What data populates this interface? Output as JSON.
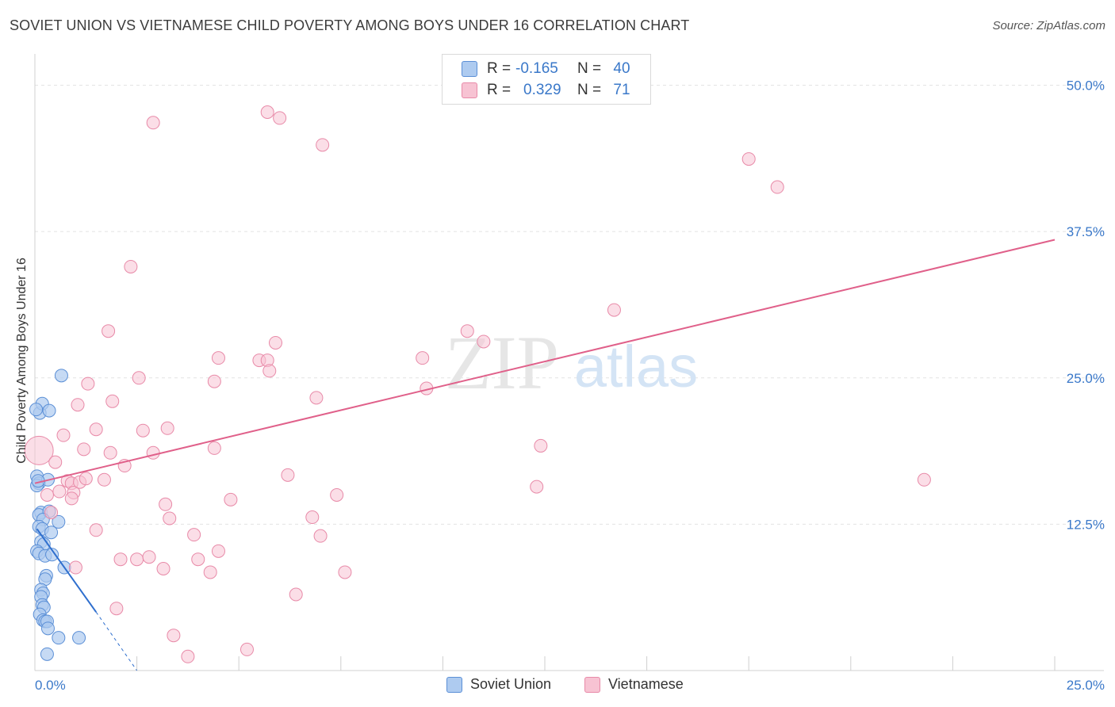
{
  "header": {
    "title": "SOVIET UNION VS VIETNAMESE CHILD POVERTY AMONG BOYS UNDER 16 CORRELATION CHART",
    "source": "Source: ZipAtlas.com"
  },
  "watermark": {
    "zip": "ZIP",
    "atlas": "atlas"
  },
  "legend": {
    "rows": [
      {
        "r_label": "R =",
        "r_value": "-0.165",
        "n_label": "N =",
        "n_value": "40"
      },
      {
        "r_label": "R =",
        "r_value": "0.329",
        "n_label": "N =",
        "n_value": "71"
      }
    ],
    "bottom": [
      "Soviet Union",
      "Vietnamese"
    ]
  },
  "colors": {
    "soviet_fill": "#aecbf0",
    "soviet_stroke": "#5b8fd6",
    "soviet_line": "#2f6fce",
    "viet_fill": "#f7c3d3",
    "viet_stroke": "#e88aa8",
    "viet_line": "#e0608a",
    "grid": "#e3e3e3",
    "tick_label": "#3a78c9"
  },
  "chart_data": {
    "type": "scatter",
    "title": "SOVIET UNION VS VIETNAMESE CHILD POVERTY AMONG BOYS UNDER 16 CORRELATION CHART",
    "xlabel": "",
    "ylabel": "Child Poverty Among Boys Under 16",
    "xlim": [
      0,
      25
    ],
    "ylim": [
      0,
      52
    ],
    "x_tick_labels": [
      "0.0%",
      "25.0%"
    ],
    "y_ticks": [
      12.5,
      25.0,
      37.5,
      50.0
    ],
    "y_tick_labels": [
      "12.5%",
      "25.0%",
      "37.5%",
      "50.0%"
    ],
    "grid": true,
    "series": [
      {
        "name": "Soviet Union",
        "r": -0.165,
        "n": 40,
        "points": [
          [
            0.12,
            22.0
          ],
          [
            0.18,
            22.8
          ],
          [
            0.35,
            22.2
          ],
          [
            0.65,
            25.2
          ],
          [
            0.05,
            16.6
          ],
          [
            0.1,
            16.0
          ],
          [
            0.32,
            16.3
          ],
          [
            0.05,
            15.8
          ],
          [
            0.15,
            13.5
          ],
          [
            0.1,
            13.3
          ],
          [
            0.35,
            13.6
          ],
          [
            0.2,
            12.9
          ],
          [
            0.58,
            12.7
          ],
          [
            0.1,
            12.3
          ],
          [
            0.18,
            12.1
          ],
          [
            0.4,
            11.8
          ],
          [
            0.15,
            11.0
          ],
          [
            0.22,
            10.8
          ],
          [
            0.05,
            10.2
          ],
          [
            0.1,
            10.0
          ],
          [
            0.25,
            9.8
          ],
          [
            0.42,
            9.9
          ],
          [
            0.72,
            8.8
          ],
          [
            0.28,
            8.1
          ],
          [
            0.25,
            7.8
          ],
          [
            0.15,
            6.9
          ],
          [
            0.2,
            6.6
          ],
          [
            0.15,
            6.3
          ],
          [
            0.18,
            5.6
          ],
          [
            0.22,
            5.4
          ],
          [
            0.12,
            4.8
          ],
          [
            0.2,
            4.3
          ],
          [
            0.25,
            4.2
          ],
          [
            0.3,
            4.2
          ],
          [
            0.32,
            3.6
          ],
          [
            0.58,
            2.8
          ],
          [
            1.08,
            2.8
          ],
          [
            0.3,
            1.4
          ],
          [
            0.03,
            22.3
          ],
          [
            0.08,
            16.2
          ]
        ],
        "trend": {
          "x": [
            0.05,
            1.5
          ],
          "y": [
            12.1,
            5.0
          ],
          "dashed_to": [
            2.5,
            0.0
          ]
        }
      },
      {
        "name": "Vietnamese",
        "r": 0.329,
        "n": 71,
        "points": [
          [
            0.1,
            18.8
          ],
          [
            0.3,
            15.0
          ],
          [
            0.4,
            13.5
          ],
          [
            0.5,
            17.8
          ],
          [
            0.7,
            20.1
          ],
          [
            0.8,
            16.2
          ],
          [
            0.9,
            16.0
          ],
          [
            0.95,
            15.2
          ],
          [
            1.1,
            16.1
          ],
          [
            1.05,
            22.7
          ],
          [
            1.2,
            18.9
          ],
          [
            1.3,
            24.5
          ],
          [
            1.5,
            20.6
          ],
          [
            1.7,
            16.3
          ],
          [
            1.8,
            29.0
          ],
          [
            1.85,
            18.6
          ],
          [
            1.9,
            23.0
          ],
          [
            2.2,
            17.5
          ],
          [
            2.35,
            34.5
          ],
          [
            2.55,
            25.0
          ],
          [
            2.65,
            20.5
          ],
          [
            2.9,
            18.6
          ],
          [
            2.9,
            46.8
          ],
          [
            3.25,
            20.7
          ],
          [
            3.2,
            14.2
          ],
          [
            3.3,
            13.0
          ],
          [
            3.9,
            11.6
          ],
          [
            4.0,
            9.5
          ],
          [
            4.3,
            8.4
          ],
          [
            4.4,
            19.0
          ],
          [
            4.4,
            24.7
          ],
          [
            4.5,
            10.2
          ],
          [
            4.5,
            26.7
          ],
          [
            4.8,
            14.6
          ],
          [
            5.5,
            26.5
          ],
          [
            5.7,
            26.5
          ],
          [
            5.7,
            47.7
          ],
          [
            5.75,
            25.6
          ],
          [
            5.9,
            28.0
          ],
          [
            6.0,
            47.2
          ],
          [
            6.2,
            16.7
          ],
          [
            6.4,
            6.5
          ],
          [
            6.8,
            13.1
          ],
          [
            6.9,
            23.3
          ],
          [
            7.0,
            11.5
          ],
          [
            7.05,
            44.9
          ],
          [
            7.4,
            15.0
          ],
          [
            7.6,
            8.4
          ],
          [
            9.5,
            26.7
          ],
          [
            9.6,
            24.1
          ],
          [
            10.6,
            29.0
          ],
          [
            11.0,
            28.1
          ],
          [
            12.3,
            15.7
          ],
          [
            12.4,
            19.2
          ],
          [
            14.2,
            30.8
          ],
          [
            17.5,
            43.7
          ],
          [
            18.2,
            41.3
          ],
          [
            21.8,
            16.3
          ],
          [
            1.0,
            8.8
          ],
          [
            1.5,
            12.0
          ],
          [
            2.0,
            5.3
          ],
          [
            2.5,
            9.5
          ],
          [
            2.8,
            9.7
          ],
          [
            3.15,
            8.7
          ],
          [
            3.4,
            3.0
          ],
          [
            3.75,
            1.2
          ],
          [
            5.2,
            1.8
          ],
          [
            2.1,
            9.5
          ],
          [
            0.6,
            15.3
          ],
          [
            1.25,
            16.4
          ],
          [
            0.9,
            14.7
          ]
        ],
        "trend": {
          "x": [
            0.0,
            25.0
          ],
          "y": [
            16.0,
            36.8
          ]
        }
      }
    ]
  }
}
